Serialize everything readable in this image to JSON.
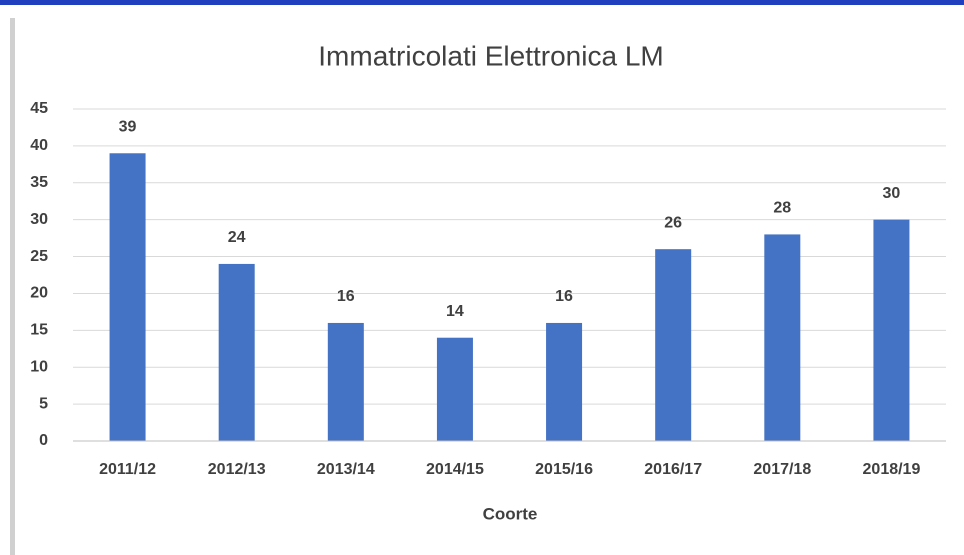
{
  "chart_data": {
    "type": "bar",
    "title": "Immatricolati Elettronica LM",
    "x_label": "Coorte",
    "categories": [
      "2011/12",
      "2012/13",
      "2013/14",
      "2014/15",
      "2015/16",
      "2016/17",
      "2017/18",
      "2018/19"
    ],
    "values": [
      39,
      24,
      16,
      14,
      16,
      26,
      28,
      30
    ],
    "color": "#4472c4",
    "ylim": [
      0,
      45
    ],
    "yticks": [
      0,
      5,
      10,
      15,
      20,
      25,
      30,
      35,
      40,
      45
    ],
    "grid": true
  }
}
